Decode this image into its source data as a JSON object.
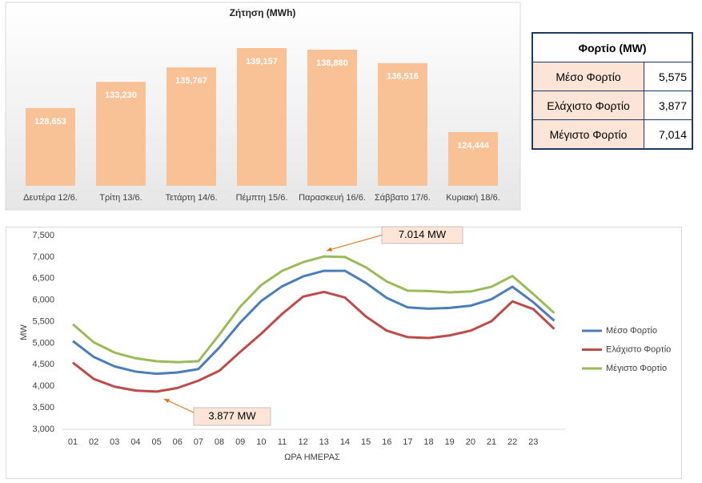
{
  "chart_data": [
    {
      "type": "bar",
      "title": "Ζήτηση (MWh)",
      "categories": [
        "Δευτέρα 12/6.",
        "Τρίτη 13/6.",
        "Τετάρτη 14/6.",
        "Πέμπτη 15/6.",
        "Παρασκευή 16/6.",
        "Σάββατο 17/6.",
        "Κυριακή 18/6."
      ],
      "values": [
        128653,
        133230,
        135767,
        139157,
        138880,
        136516,
        124444
      ],
      "value_labels": [
        "128,653",
        "133,230",
        "135,767",
        "139,157",
        "138,880",
        "136,516",
        "124,444"
      ],
      "color": "#f9c196"
    },
    {
      "type": "line",
      "categories": [
        "01",
        "02",
        "03",
        "04",
        "05",
        "06",
        "07",
        "08",
        "09",
        "10",
        "11",
        "12",
        "13",
        "14",
        "15",
        "16",
        "17",
        "18",
        "19",
        "20",
        "21",
        "22",
        "23",
        null
      ],
      "series": [
        {
          "name": "Μέσο Φορτίο",
          "color": "#4a7ebb",
          "values": [
            5050,
            4680,
            4460,
            4340,
            4290,
            4320,
            4400,
            4900,
            5480,
            5980,
            6320,
            6550,
            6680,
            6680,
            6400,
            6050,
            5830,
            5800,
            5820,
            5870,
            6020,
            6310,
            5950,
            5520
          ]
        },
        {
          "name": "Ελάχιστο Φορτίο",
          "color": "#be4b48",
          "values": [
            4550,
            4170,
            3990,
            3900,
            3877,
            3960,
            4130,
            4360,
            4800,
            5220,
            5680,
            6080,
            6190,
            6060,
            5620,
            5290,
            5140,
            5120,
            5180,
            5290,
            5510,
            5970,
            5790,
            5330
          ]
        },
        {
          "name": "Μέγιστο Φορτίο",
          "color": "#9bbb59",
          "values": [
            5440,
            5020,
            4780,
            4650,
            4580,
            4560,
            4580,
            5200,
            5850,
            6350,
            6680,
            6880,
            7014,
            7000,
            6760,
            6430,
            6220,
            6210,
            6180,
            6200,
            6310,
            6560,
            6140,
            5700
          ]
        }
      ],
      "ylim": [
        3000,
        7500
      ],
      "yticks": [
        {
          "value": 3000,
          "label": "3,000"
        },
        {
          "value": 3500,
          "label": "3,500"
        },
        {
          "value": 4000,
          "label": "4,000"
        },
        {
          "value": 4500,
          "label": "4,500"
        },
        {
          "value": 5000,
          "label": "5,000"
        },
        {
          "value": 5500,
          "label": "5,500"
        },
        {
          "value": 6000,
          "label": "6,000"
        },
        {
          "value": 6500,
          "label": "6,500"
        },
        {
          "value": 7000,
          "label": "7,000"
        },
        {
          "value": 7500,
          "label": "7,500"
        }
      ],
      "xlabel": "ΩΡΑ ΗΜΕΡΑΣ",
      "ylabel": "MW",
      "legend": "right",
      "annotations": [
        "7.014 MW",
        "3.877 MW"
      ]
    }
  ],
  "table": {
    "title": "Φορτίο (MW)",
    "rows": [
      [
        "Μέσο Φορτίο",
        "5,575"
      ],
      [
        "Ελάχιστο Φορτίο",
        "3,877"
      ],
      [
        "Μέγιστο Φορτίο",
        "7,014"
      ]
    ]
  }
}
